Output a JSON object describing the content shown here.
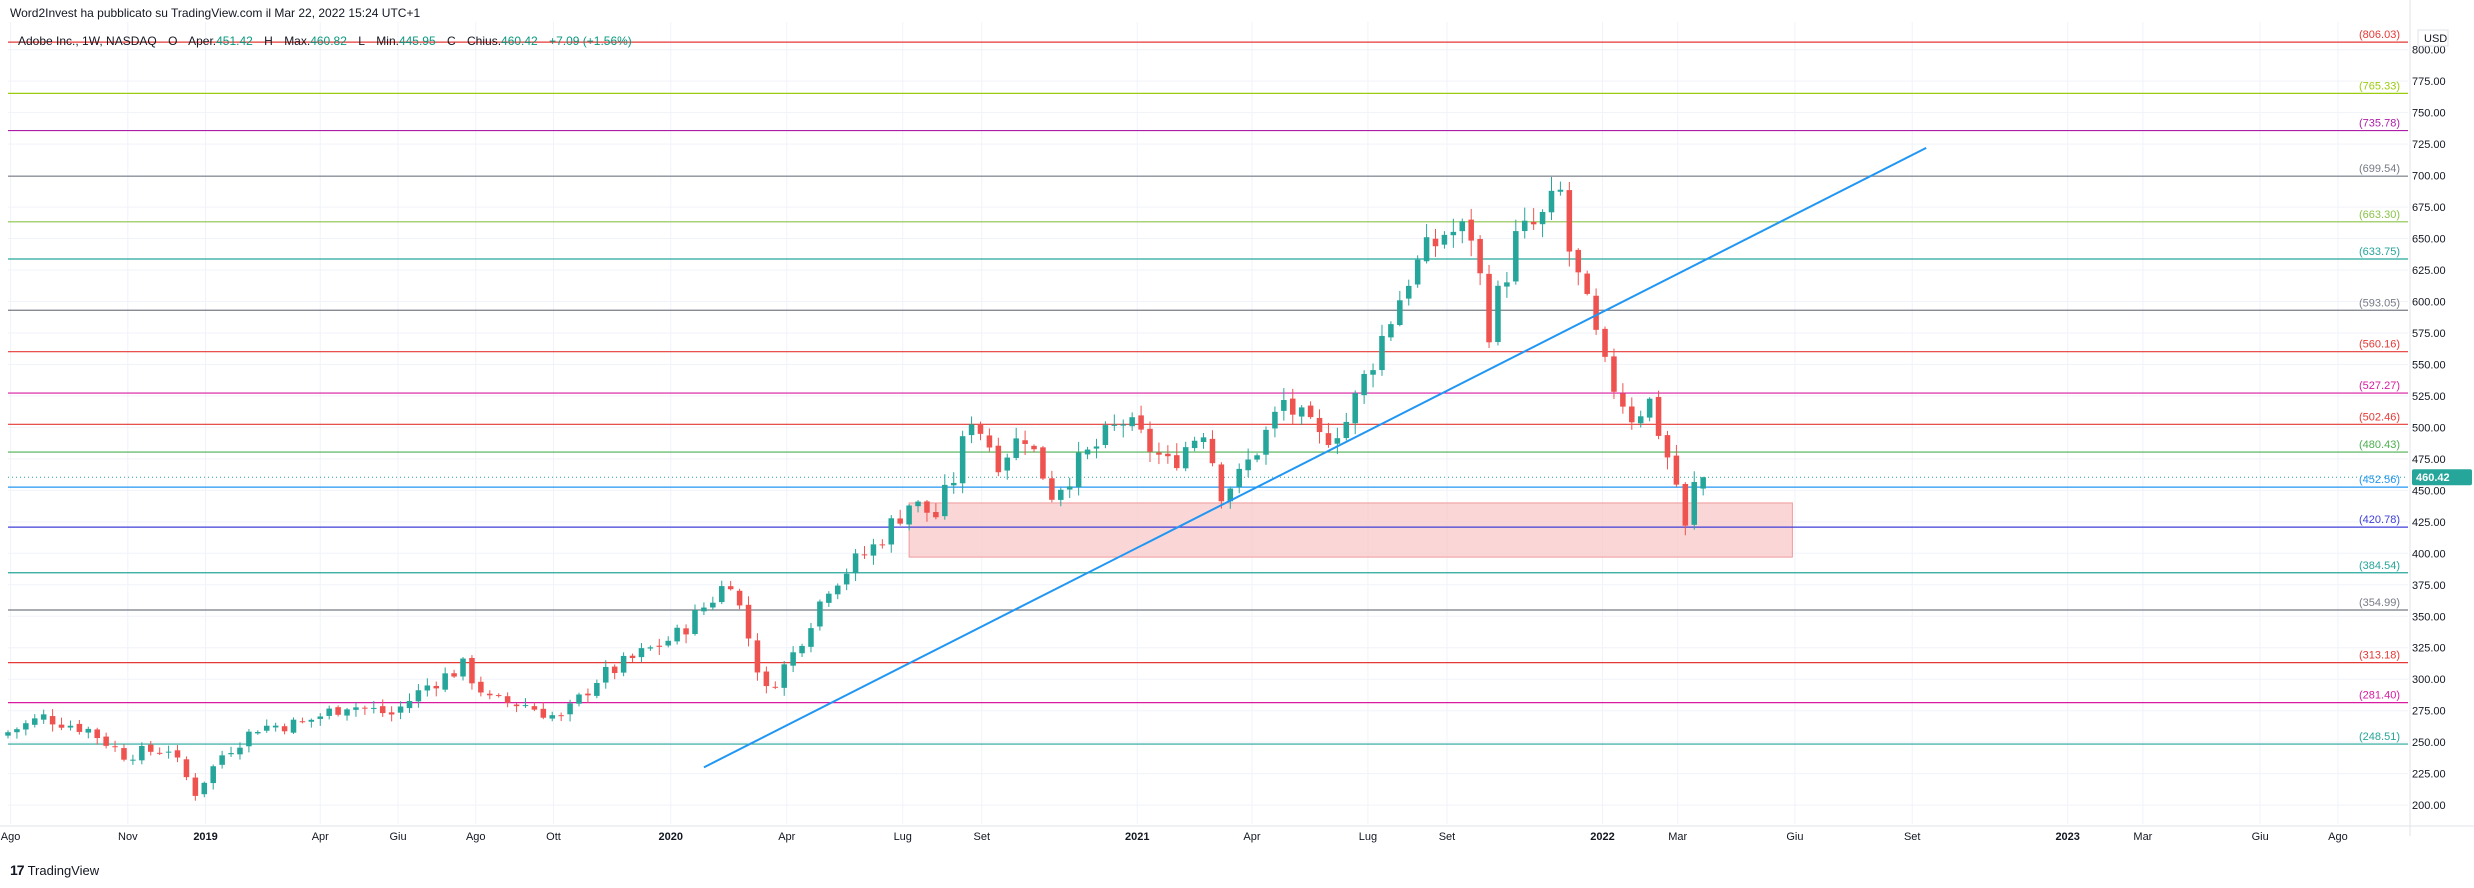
{
  "header": {
    "publisher_text": "Word2Invest ha pubblicato su TradingView.com il Mar 22, 2022 15:24 UTC+1"
  },
  "legend": {
    "symbol": "Adobe Inc., 1W, NASDAQ",
    "open_label": "O",
    "open_name": "Aper.",
    "open_value": "451.42",
    "high_label": "H",
    "high_name": "Max.",
    "high_value": "460.82",
    "low_label": "L",
    "low_name": "Min.",
    "low_value": "445.95",
    "close_label": "C",
    "close_name": "Chius.",
    "close_value": "460.42",
    "change": "+7.09 (+1.56%)"
  },
  "footer": {
    "brand": "TradingView",
    "logo_mark": "17"
  },
  "colors": {
    "up": "#26a69a",
    "down": "#ef5350",
    "trendline": "#2196f3",
    "zone_fill": "#f8c8c8",
    "zone_border": "#ef9a9a",
    "price_tag": "#26a69a"
  },
  "chart_data": {
    "type": "candlestick",
    "currency": "USD",
    "y_range": [
      185,
      822
    ],
    "y_ticks": [
      200,
      225,
      250,
      275,
      300,
      325,
      350,
      375,
      400,
      425,
      450,
      475,
      500,
      525,
      550,
      575,
      600,
      625,
      650,
      675,
      700,
      725,
      750,
      775,
      800
    ],
    "x_range": [
      "2018-07-30",
      "2023-09-25"
    ],
    "x_ticks": [
      {
        "date": "2018-08-01",
        "label": "Ago",
        "bold": false
      },
      {
        "date": "2018-11-01",
        "label": "Nov",
        "bold": false
      },
      {
        "date": "2019-01-01",
        "label": "2019",
        "bold": true
      },
      {
        "date": "2019-04-01",
        "label": "Apr",
        "bold": false
      },
      {
        "date": "2019-06-01",
        "label": "Giu",
        "bold": false
      },
      {
        "date": "2019-08-01",
        "label": "Ago",
        "bold": false
      },
      {
        "date": "2019-10-01",
        "label": "Ott",
        "bold": false
      },
      {
        "date": "2020-01-01",
        "label": "2020",
        "bold": true
      },
      {
        "date": "2020-04-01",
        "label": "Apr",
        "bold": false
      },
      {
        "date": "2020-07-01",
        "label": "Lug",
        "bold": false
      },
      {
        "date": "2020-09-01",
        "label": "Set",
        "bold": false
      },
      {
        "date": "2021-01-01",
        "label": "2021",
        "bold": true
      },
      {
        "date": "2021-04-01",
        "label": "Apr",
        "bold": false
      },
      {
        "date": "2021-07-01",
        "label": "Lug",
        "bold": false
      },
      {
        "date": "2021-09-01",
        "label": "Set",
        "bold": false
      },
      {
        "date": "2022-01-01",
        "label": "2022",
        "bold": true
      },
      {
        "date": "2022-03-01",
        "label": "Mar",
        "bold": false
      },
      {
        "date": "2022-06-01",
        "label": "Giu",
        "bold": false
      },
      {
        "date": "2022-09-01",
        "label": "Set",
        "bold": false
      },
      {
        "date": "2023-01-01",
        "label": "2023",
        "bold": true
      },
      {
        "date": "2023-03-01",
        "label": "Mar",
        "bold": false
      },
      {
        "date": "2023-06-01",
        "label": "Giu",
        "bold": false
      },
      {
        "date": "2023-08-01",
        "label": "Ago",
        "bold": false
      }
    ],
    "horizontal_levels": [
      {
        "value": 806.03,
        "label": "(806.03)",
        "color": "#e53935"
      },
      {
        "value": 765.33,
        "label": "(765.33)",
        "color": "#9ccc0f"
      },
      {
        "value": 735.78,
        "label": "(735.78)",
        "color": "#ab1fa8"
      },
      {
        "value": 699.54,
        "label": "(699.54)",
        "color": "#787b86"
      },
      {
        "value": 663.3,
        "label": "(663.30)",
        "color": "#8bc34a"
      },
      {
        "value": 633.75,
        "label": "(633.75)",
        "color": "#26a69a"
      },
      {
        "value": 593.05,
        "label": "(593.05)",
        "color": "#787b86"
      },
      {
        "value": 560.16,
        "label": "(560.16)",
        "color": "#e53935"
      },
      {
        "value": 527.27,
        "label": "(527.27)",
        "color": "#d81b9f"
      },
      {
        "value": 502.46,
        "label": "(502.46)",
        "color": "#e53935"
      },
      {
        "value": 480.43,
        "label": "(480.43)",
        "color": "#4caf50"
      },
      {
        "value": 452.56,
        "label": "(452.56)",
        "color": "#2196f3"
      },
      {
        "value": 420.78,
        "label": "(420.78)",
        "color": "#3f3fd9"
      },
      {
        "value": 384.54,
        "label": "(384.54)",
        "color": "#26a69a"
      },
      {
        "value": 354.99,
        "label": "(354.99)",
        "color": "#787b86"
      },
      {
        "value": 313.18,
        "label": "(313.18)",
        "color": "#e53935"
      },
      {
        "value": 281.4,
        "label": "(281.40)",
        "color": "#d81b9f"
      },
      {
        "value": 248.51,
        "label": "(248.51)",
        "color": "#26a69a"
      }
    ],
    "last_price": {
      "value": 460.42,
      "label": "460.42"
    },
    "trendline": {
      "start": {
        "date": "2020-01-27",
        "value": 230
      },
      "end": {
        "date": "2022-09-12",
        "value": 722
      }
    },
    "zone": {
      "start_date": "2020-07-06",
      "end_date": "2022-05-30",
      "top": 440,
      "bottom": 397
    },
    "anchors": [
      [
        "2018-07-30",
        258
      ],
      [
        "2018-08-27",
        270
      ],
      [
        "2018-10-01",
        260
      ],
      [
        "2018-10-29",
        240
      ],
      [
        "2018-12-03",
        245
      ],
      [
        "2018-12-24",
        210
      ],
      [
        "2019-01-14",
        240
      ],
      [
        "2019-02-11",
        262
      ],
      [
        "2019-03-18",
        265
      ],
      [
        "2019-04-22",
        280
      ],
      [
        "2019-05-27",
        272
      ],
      [
        "2019-06-24",
        295
      ],
      [
        "2019-07-22",
        310
      ],
      [
        "2019-08-12",
        283
      ],
      [
        "2019-09-09",
        280
      ],
      [
        "2019-10-07",
        268
      ],
      [
        "2019-11-04",
        300
      ],
      [
        "2019-12-09",
        320
      ],
      [
        "2020-01-06",
        335
      ],
      [
        "2020-02-17",
        380
      ],
      [
        "2020-03-09",
        310
      ],
      [
        "2020-03-16",
        290
      ],
      [
        "2020-04-06",
        320
      ],
      [
        "2020-05-04",
        375
      ],
      [
        "2020-06-08",
        405
      ],
      [
        "2020-07-06",
        440
      ],
      [
        "2020-07-27",
        430
      ],
      [
        "2020-08-10",
        460
      ],
      [
        "2020-08-24",
        510
      ],
      [
        "2020-09-14",
        475
      ],
      [
        "2020-10-05",
        495
      ],
      [
        "2020-10-26",
        448
      ],
      [
        "2020-11-23",
        478
      ],
      [
        "2020-12-21",
        505
      ],
      [
        "2021-01-25",
        470
      ],
      [
        "2021-02-22",
        500
      ],
      [
        "2021-03-08",
        450
      ],
      [
        "2021-03-22",
        460
      ],
      [
        "2021-04-12",
        495
      ],
      [
        "2021-04-26",
        520
      ],
      [
        "2021-05-24",
        490
      ],
      [
        "2021-06-14",
        505
      ],
      [
        "2021-07-05",
        555
      ],
      [
        "2021-08-02",
        620
      ],
      [
        "2021-08-30",
        655
      ],
      [
        "2021-09-20",
        655
      ],
      [
        "2021-10-04",
        580
      ],
      [
        "2021-10-25",
        648
      ],
      [
        "2021-11-15",
        665
      ],
      [
        "2021-11-29",
        685
      ],
      [
        "2021-12-06",
        640
      ],
      [
        "2021-12-27",
        570
      ],
      [
        "2022-01-03",
        545
      ],
      [
        "2022-01-24",
        510
      ],
      [
        "2022-02-07",
        520
      ],
      [
        "2022-02-28",
        455
      ],
      [
        "2022-03-07",
        418
      ],
      [
        "2022-03-14",
        453
      ],
      [
        "2022-03-21",
        460
      ]
    ]
  }
}
